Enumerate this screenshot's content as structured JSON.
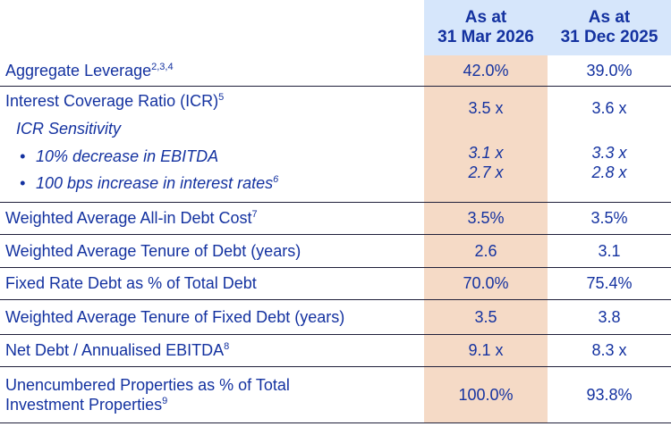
{
  "header": {
    "col_a_line1": "As at",
    "col_a_line2": "31 Mar 2026",
    "col_b_line1": "As at",
    "col_b_line2": "31 Dec 2025"
  },
  "rows": [
    {
      "label": "Aggregate Leverage",
      "sup": "2,3,4",
      "a": "42.0%",
      "b": "39.0%"
    },
    {
      "label": "Interest Coverage Ratio (ICR)",
      "sup": "5",
      "a": "3.5 x",
      "b": "3.6 x",
      "sensitivity_title": "ICR Sensitivity",
      "bullet": "•",
      "sensitivity": [
        {
          "label": "10% decrease in EBITDA",
          "sup": "",
          "a": "3.1 x",
          "b": "3.3 x"
        },
        {
          "label": "100 bps increase in interest rates",
          "sup": "6",
          "a": "2.7 x",
          "b": "2.8 x"
        }
      ]
    },
    {
      "label": "Weighted Average All-in Debt Cost",
      "sup": "7",
      "a": "3.5%",
      "b": "3.5%"
    },
    {
      "label": "Weighted Average Tenure of Debt (years)",
      "sup": "",
      "a": "2.6",
      "b": "3.1"
    },
    {
      "label": "Fixed Rate Debt as % of Total Debt",
      "sup": "",
      "a": "70.0%",
      "b": "75.4%"
    },
    {
      "label": "Weighted Average Tenure of Fixed Debt (years)",
      "sup": "",
      "a": "3.5",
      "b": "3.8"
    },
    {
      "label": "Net Debt / Annualised EBITDA",
      "sup": "8",
      "a": "9.1 x",
      "b": "8.3 x"
    },
    {
      "label_line1": "Unencumbered Properties as % of Total",
      "label_line2": "Investment Properties",
      "sup": "9",
      "a": "100.0%",
      "b": "93.8%"
    }
  ],
  "colors": {
    "text": "#1432a0",
    "header_bg": "#d6e6fb",
    "highlight_col_bg": "#f5dac6"
  }
}
